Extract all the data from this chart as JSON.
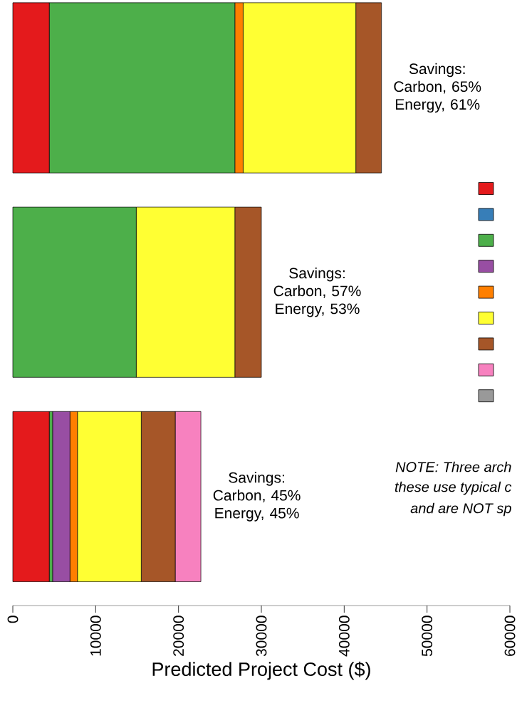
{
  "chart_data": {
    "type": "bar",
    "orientation": "horizontal",
    "stacked": true,
    "categories": [
      null,
      null,
      null
    ],
    "series": [
      {
        "color": "#e41a1c",
        "values": [
          4400,
          0,
          4400
        ]
      },
      {
        "color": "#377eb8",
        "values": [
          0,
          0,
          0
        ]
      },
      {
        "color": "#4daf4a",
        "values": [
          22400,
          14900,
          400
        ]
      },
      {
        "color": "#984ea3",
        "values": [
          0,
          0,
          2100
        ]
      },
      {
        "color": "#ff7f00",
        "values": [
          1000,
          0,
          900
        ]
      },
      {
        "color": "#ffff33",
        "values": [
          13600,
          11900,
          7700
        ]
      },
      {
        "color": "#a65628",
        "values": [
          3100,
          3200,
          4100
        ]
      },
      {
        "color": "#f781bf",
        "values": [
          0,
          0,
          3100
        ]
      },
      {
        "color": "#999999",
        "values": [
          0,
          0,
          0
        ]
      }
    ],
    "xlabel": "Predicted Project Cost ($)",
    "xlim": [
      0,
      60000
    ],
    "xticks": [
      0,
      10000,
      20000,
      30000,
      40000,
      50000,
      60000
    ],
    "annotations": [
      "Savings: Carbon, 65% Energy, 61%",
      "Savings: Carbon, 57% Energy, 53%",
      "Savings: Carbon, 45% Energy, 45%",
      "*NOTE: Three arch*",
      "*these use typical c*",
      "*and are NOT sp*"
    ]
  }
}
